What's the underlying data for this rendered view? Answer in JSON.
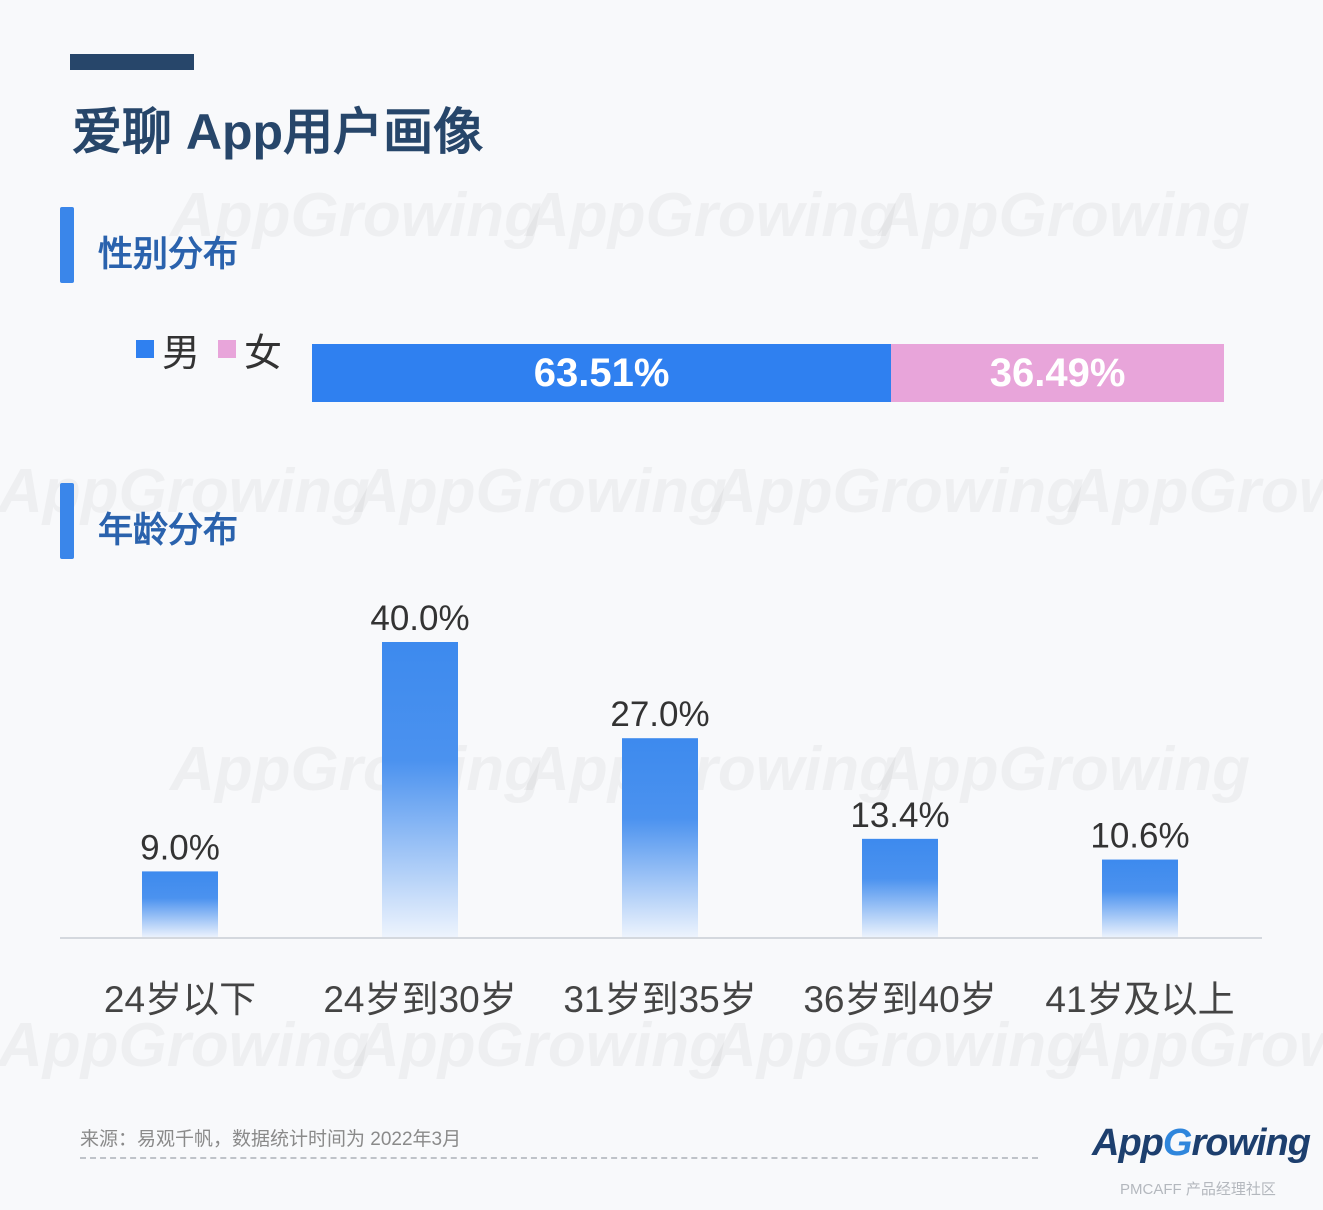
{
  "title": "爱聊 App用户画像",
  "watermark_text": "AppGrowing",
  "gender_section": {
    "title": "性别分布",
    "legend": [
      {
        "label": "男",
        "color": "#2f80f0"
      },
      {
        "label": "女",
        "color": "#e8a5da"
      }
    ]
  },
  "age_section": {
    "title": "年龄分布"
  },
  "chart_data": [
    {
      "type": "bar",
      "orientation": "horizontal-stacked",
      "title": "性别分布",
      "series": [
        {
          "name": "男",
          "value": 63.51,
          "label": "63.51%",
          "color": "#2f80f0"
        },
        {
          "name": "女",
          "value": 36.49,
          "label": "36.49%",
          "color": "#e8a5da"
        }
      ]
    },
    {
      "type": "bar",
      "title": "年龄分布",
      "categories": [
        "24岁以下",
        "24岁到30岁",
        "31岁到35岁",
        "36岁到40岁",
        "41岁及以上"
      ],
      "values": [
        9.0,
        40.0,
        27.0,
        13.4,
        10.6
      ],
      "labels": [
        "9.0%",
        "40.0%",
        "27.0%",
        "13.4%",
        "10.6%"
      ],
      "ylim": [
        0,
        40
      ],
      "color": "#3d8aee"
    }
  ],
  "footer": {
    "source": "来源：易观千帆，数据统计时间为  2022年3月",
    "brand_prefix": "App",
    "brand_g": "G",
    "brand_suffix": "rowing",
    "credit": "PMCAFF 产品经理社区"
  }
}
